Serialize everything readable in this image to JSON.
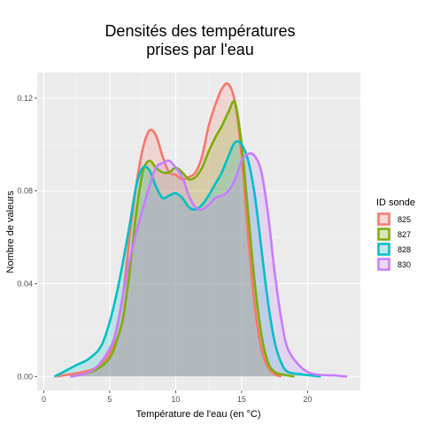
{
  "chart_data": {
    "type": "area",
    "title_lines": [
      "Densités des températures",
      "prises par l'eau"
    ],
    "xlabel": "Température de l'eau (en °C)",
    "ylabel": "Nombre de valeurs",
    "xlim": [
      -0.5,
      24
    ],
    "ylim": [
      -0.006,
      0.131
    ],
    "xticks": [
      0,
      5,
      10,
      15,
      20
    ],
    "yticks": [
      0.0,
      0.04,
      0.08,
      0.12
    ],
    "ytick_labels": [
      "0.00",
      "0.04",
      "0.08",
      "0.12"
    ],
    "grid": true,
    "legend_title": "ID sonde",
    "legend_position": "right",
    "series": [
      {
        "name": "825",
        "color": "#F8766D",
        "points": [
          [
            1,
            0
          ],
          [
            2,
            0.001
          ],
          [
            3,
            0.002
          ],
          [
            4,
            0.004
          ],
          [
            5,
            0.01
          ],
          [
            5.5,
            0.02
          ],
          [
            6,
            0.035
          ],
          [
            6.5,
            0.06
          ],
          [
            7,
            0.082
          ],
          [
            7.5,
            0.098
          ],
          [
            8,
            0.106
          ],
          [
            8.5,
            0.104
          ],
          [
            9,
            0.095
          ],
          [
            9.5,
            0.088
          ],
          [
            10,
            0.087
          ],
          [
            10.5,
            0.085
          ],
          [
            11,
            0.086
          ],
          [
            11.5,
            0.088
          ],
          [
            12,
            0.095
          ],
          [
            12.5,
            0.108
          ],
          [
            13,
            0.117
          ],
          [
            13.5,
            0.124
          ],
          [
            14,
            0.126
          ],
          [
            14.5,
            0.118
          ],
          [
            15,
            0.095
          ],
          [
            15.5,
            0.06
          ],
          [
            16,
            0.03
          ],
          [
            16.5,
            0.012
          ],
          [
            17,
            0.004
          ],
          [
            17.5,
            0.001
          ],
          [
            18,
            0
          ]
        ]
      },
      {
        "name": "827",
        "color": "#7CAE00",
        "points": [
          [
            2,
            0
          ],
          [
            3,
            0.001
          ],
          [
            4,
            0.003
          ],
          [
            5,
            0.008
          ],
          [
            5.5,
            0.015
          ],
          [
            6,
            0.025
          ],
          [
            6.5,
            0.045
          ],
          [
            7,
            0.07
          ],
          [
            7.5,
            0.088
          ],
          [
            8,
            0.093
          ],
          [
            8.5,
            0.09
          ],
          [
            9,
            0.088
          ],
          [
            9.5,
            0.088
          ],
          [
            10,
            0.09
          ],
          [
            10.5,
            0.088
          ],
          [
            11,
            0.085
          ],
          [
            11.5,
            0.086
          ],
          [
            12,
            0.09
          ],
          [
            12.5,
            0.097
          ],
          [
            13,
            0.103
          ],
          [
            13.5,
            0.108
          ],
          [
            14,
            0.114
          ],
          [
            14.5,
            0.118
          ],
          [
            15,
            0.1
          ],
          [
            15.5,
            0.07
          ],
          [
            16,
            0.04
          ],
          [
            16.5,
            0.018
          ],
          [
            17,
            0.006
          ],
          [
            17.5,
            0.002
          ],
          [
            18,
            0.001
          ],
          [
            19,
            0
          ]
        ]
      },
      {
        "name": "828",
        "color": "#00BFC4",
        "points": [
          [
            0.8,
            0
          ],
          [
            1.5,
            0.002
          ],
          [
            2.5,
            0.005
          ],
          [
            3.5,
            0.008
          ],
          [
            4.5,
            0.015
          ],
          [
            5.5,
            0.035
          ],
          [
            6.5,
            0.065
          ],
          [
            7,
            0.082
          ],
          [
            7.5,
            0.09
          ],
          [
            8,
            0.089
          ],
          [
            8.5,
            0.082
          ],
          [
            9,
            0.077
          ],
          [
            9.5,
            0.078
          ],
          [
            10,
            0.079
          ],
          [
            10.5,
            0.077
          ],
          [
            11,
            0.073
          ],
          [
            11.5,
            0.072
          ],
          [
            12,
            0.074
          ],
          [
            12.5,
            0.078
          ],
          [
            13,
            0.083
          ],
          [
            13.5,
            0.088
          ],
          [
            14,
            0.095
          ],
          [
            14.5,
            0.101
          ],
          [
            15,
            0.1
          ],
          [
            15.5,
            0.093
          ],
          [
            16,
            0.078
          ],
          [
            16.5,
            0.055
          ],
          [
            17,
            0.032
          ],
          [
            17.5,
            0.015
          ],
          [
            18,
            0.006
          ],
          [
            18.5,
            0.002
          ],
          [
            19.5,
            0.001
          ],
          [
            21,
            0
          ]
        ]
      },
      {
        "name": "830",
        "color": "#C77CFF",
        "points": [
          [
            2,
            0
          ],
          [
            3,
            0.001
          ],
          [
            4,
            0.004
          ],
          [
            5,
            0.012
          ],
          [
            5.5,
            0.02
          ],
          [
            6,
            0.035
          ],
          [
            6.5,
            0.05
          ],
          [
            7,
            0.062
          ],
          [
            7.5,
            0.072
          ],
          [
            8,
            0.082
          ],
          [
            8.5,
            0.09
          ],
          [
            9,
            0.092
          ],
          [
            9.5,
            0.093
          ],
          [
            10,
            0.09
          ],
          [
            10.5,
            0.086
          ],
          [
            11,
            0.078
          ],
          [
            11.5,
            0.073
          ],
          [
            12,
            0.072
          ],
          [
            12.5,
            0.074
          ],
          [
            13,
            0.077
          ],
          [
            13.5,
            0.078
          ],
          [
            14,
            0.08
          ],
          [
            14.5,
            0.085
          ],
          [
            15,
            0.093
          ],
          [
            15.5,
            0.096
          ],
          [
            16,
            0.095
          ],
          [
            16.5,
            0.088
          ],
          [
            17,
            0.07
          ],
          [
            17.5,
            0.045
          ],
          [
            18,
            0.025
          ],
          [
            18.5,
            0.012
          ],
          [
            19.5,
            0.004
          ],
          [
            20.5,
            0.001
          ],
          [
            22,
            0.0005
          ],
          [
            23,
            0
          ]
        ]
      }
    ]
  }
}
